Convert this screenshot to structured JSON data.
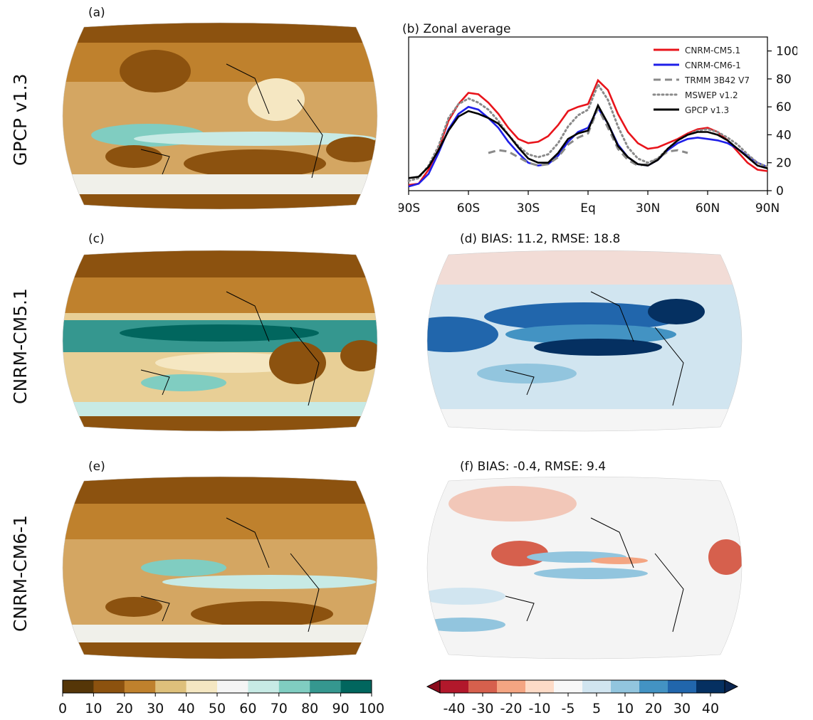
{
  "rows": [
    {
      "label": "GPCP v1.3"
    },
    {
      "label": "CNRM-CM5.1"
    },
    {
      "label": "CNRM-CM6-1"
    }
  ],
  "panels": {
    "a": {
      "tag": "(a)"
    },
    "c": {
      "tag": "(c)"
    },
    "d": {
      "title": "(d) BIAS: 11.2, RMSE: 18.8"
    },
    "e": {
      "tag": "(e)"
    },
    "f": {
      "title": "(f) BIAS: -0.4, RMSE:  9.4"
    }
  },
  "colorbars": {
    "precip": {
      "ticks": [
        "0",
        "10",
        "20",
        "30",
        "40",
        "50",
        "60",
        "70",
        "80",
        "90",
        "100"
      ],
      "colors": [
        "#553608",
        "#8c520f",
        "#bf812d",
        "#dec07b",
        "#f5e7c2",
        "#f5f5f5",
        "#c7eae5",
        "#80cdc1",
        "#35978f",
        "#01665e"
      ]
    },
    "bias": {
      "ticks": [
        "-40",
        "-30",
        "-20",
        "-10",
        "-5",
        "5",
        "10",
        "20",
        "30",
        "40"
      ],
      "colors": [
        "#b2182b",
        "#d6604d",
        "#f4a582",
        "#fddbc7",
        "#f7f7f7",
        "#d1e5f0",
        "#92c5de",
        "#4393c3",
        "#2166ac",
        "#053061"
      ],
      "end_colors": [
        "#8a0b1c",
        "#0a2550"
      ]
    }
  },
  "chart_data": {
    "type": "line",
    "title": "(b) Zonal average",
    "x_ticks": [
      "90S",
      "60S",
      "30S",
      "Eq",
      "30N",
      "60N",
      "90N"
    ],
    "y_ticks": [
      "0",
      "20",
      "40",
      "60",
      "80",
      "100"
    ],
    "xlim": [
      -90,
      90
    ],
    "ylim": [
      0,
      110
    ],
    "legend_position": "top-right",
    "series": [
      {
        "name": "CNRM-CM5.1",
        "color": "#e8141b",
        "style": "solid",
        "x": [
          -90,
          -85,
          -80,
          -75,
          -70,
          -65,
          -60,
          -55,
          -50,
          -45,
          -40,
          -35,
          -30,
          -25,
          -20,
          -15,
          -10,
          -5,
          0,
          5,
          10,
          15,
          20,
          25,
          30,
          35,
          40,
          45,
          50,
          55,
          60,
          65,
          70,
          75,
          80,
          85,
          90
        ],
        "y": [
          4,
          5,
          15,
          30,
          50,
          62,
          70,
          69,
          63,
          55,
          45,
          37,
          34,
          35,
          39,
          47,
          57,
          60,
          62,
          79,
          72,
          55,
          42,
          34,
          30,
          31,
          34,
          37,
          41,
          44,
          45,
          42,
          36,
          28,
          20,
          15,
          14
        ]
      },
      {
        "name": "CNRM-CM6-1",
        "color": "#1f1fe8",
        "style": "solid",
        "x": [
          -90,
          -85,
          -80,
          -75,
          -70,
          -65,
          -60,
          -55,
          -50,
          -45,
          -40,
          -35,
          -30,
          -25,
          -20,
          -15,
          -10,
          -5,
          0,
          5,
          10,
          15,
          20,
          25,
          30,
          35,
          40,
          45,
          50,
          55,
          60,
          65,
          70,
          75,
          80,
          85,
          90
        ],
        "y": [
          3,
          5,
          12,
          27,
          44,
          55,
          60,
          58,
          52,
          45,
          35,
          27,
          20,
          18,
          19,
          25,
          35,
          42,
          45,
          59,
          48,
          33,
          24,
          19,
          18,
          22,
          29,
          34,
          37,
          38,
          37,
          36,
          34,
          30,
          25,
          20,
          17
        ]
      },
      {
        "name": "TRMM 3B42 V7",
        "color": "#8a8a8a",
        "style": "dashed",
        "x": [
          -50,
          -45,
          -40,
          -35,
          -30,
          -25,
          -20,
          -15,
          -10,
          -5,
          0,
          5,
          10,
          15,
          20,
          25,
          30,
          35,
          40,
          45,
          50
        ],
        "y": [
          27,
          29,
          28,
          24,
          20,
          18,
          19,
          24,
          33,
          38,
          41,
          59,
          45,
          30,
          22,
          18,
          19,
          23,
          28,
          29,
          27
        ]
      },
      {
        "name": "MSWEP v1.2",
        "color": "#8a8a8a",
        "style": "dotted",
        "x": [
          -90,
          -85,
          -80,
          -75,
          -70,
          -65,
          -60,
          -55,
          -50,
          -45,
          -40,
          -35,
          -30,
          -25,
          -20,
          -15,
          -10,
          -5,
          0,
          5,
          10,
          15,
          20,
          25,
          30,
          35,
          40,
          45,
          50,
          55,
          60,
          65,
          70,
          75,
          80,
          85,
          90
        ],
        "y": [
          7,
          9,
          18,
          32,
          52,
          62,
          66,
          63,
          58,
          50,
          40,
          32,
          26,
          24,
          26,
          34,
          46,
          54,
          58,
          76,
          65,
          46,
          31,
          23,
          20,
          23,
          30,
          36,
          40,
          43,
          44,
          42,
          38,
          33,
          26,
          20,
          17
        ]
      },
      {
        "name": "GPCP v1.3",
        "color": "#000000",
        "style": "solid",
        "x": [
          -90,
          -85,
          -80,
          -75,
          -70,
          -65,
          -60,
          -55,
          -50,
          -45,
          -40,
          -35,
          -30,
          -25,
          -20,
          -15,
          -10,
          -5,
          0,
          5,
          10,
          15,
          20,
          25,
          30,
          35,
          40,
          45,
          50,
          55,
          60,
          65,
          70,
          75,
          80,
          85,
          90
        ],
        "y": [
          9,
          10,
          17,
          29,
          43,
          53,
          57,
          55,
          52,
          48,
          40,
          31,
          23,
          20,
          20,
          27,
          37,
          41,
          43,
          61,
          48,
          32,
          24,
          19,
          18,
          22,
          30,
          36,
          40,
          42,
          42,
          40,
          36,
          30,
          24,
          18,
          16
        ]
      }
    ]
  }
}
